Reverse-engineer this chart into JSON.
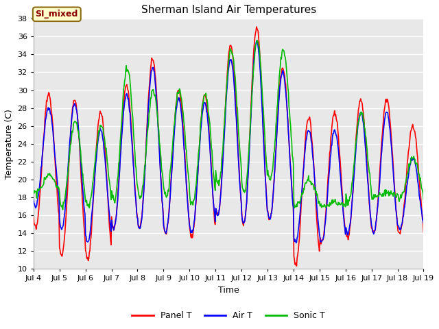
{
  "title": "Sherman Island Air Temperatures",
  "xlabel": "Time",
  "ylabel": "Temperature (C)",
  "ylim": [
    10,
    38
  ],
  "yticks": [
    10,
    12,
    14,
    16,
    18,
    20,
    22,
    24,
    26,
    28,
    30,
    32,
    34,
    36,
    38
  ],
  "xtick_labels": [
    "Jul 4",
    "Jul 5",
    "Jul 6",
    "Jul 7",
    "Jul 8",
    "Jul 9",
    "Jul 10",
    "Jul 11",
    "Jul 12",
    "Jul 13",
    "Jul 14",
    "Jul 15",
    "Jul 16",
    "Jul 17",
    "Jul 18",
    "Jul 19"
  ],
  "legend_labels": [
    "Panel T",
    "Air T",
    "Sonic T"
  ],
  "legend_colors": [
    "#ff0000",
    "#0000ff",
    "#00bb00"
  ],
  "annotation_text": "SI_mixed",
  "annotation_color": "#8b0000",
  "annotation_bg": "#ffffcc",
  "annotation_edge": "#8b6914",
  "panel_t_color": "#ff0000",
  "air_t_color": "#0000ff",
  "sonic_t_color": "#00bb00",
  "bg_color": "#dcdcdc",
  "plot_bg": "#e8e8e8",
  "grid_color": "#ffffff",
  "title_fontsize": 11,
  "label_fontsize": 9,
  "tick_fontsize": 8,
  "annot_fontsize": 9
}
